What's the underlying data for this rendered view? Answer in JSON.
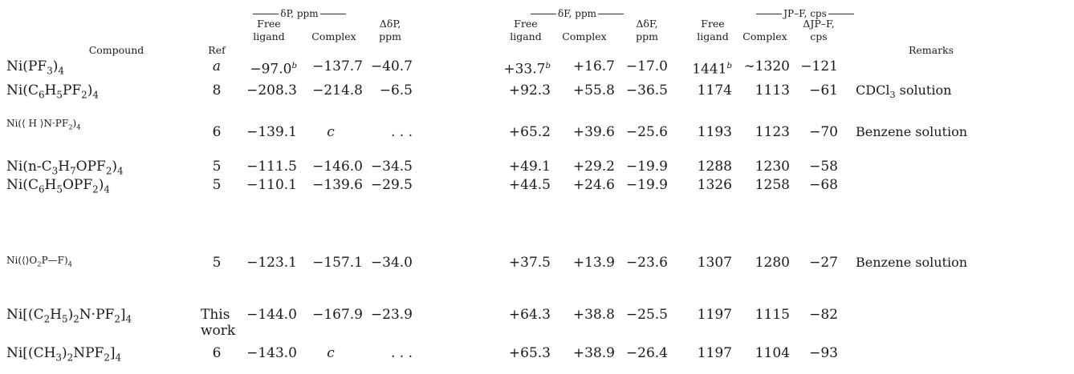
{
  "groups": {
    "dp": "δP, ppm",
    "df": "δF, ppm",
    "jpf": "JP–F, cps"
  },
  "headers": {
    "compound": "Compound",
    "ref": "Ref",
    "free1": "Free",
    "ligand1": "ligand",
    "complex1": "Complex",
    "ddp1": "ΔδP,",
    "ddp2": "ppm",
    "free2": "Free",
    "ligand2": "ligand",
    "complex2": "Complex",
    "ddf1": "ΔδF,",
    "ddf2": "ppm",
    "free3": "Free",
    "ligand3": "ligand",
    "complex3": "Complex",
    "dj1": "ΔJP–F,",
    "dj2": "cps",
    "remarks": "Remarks"
  },
  "compounds": {
    "r1": "Ni(PF3)4",
    "r2": "Ni(C6H5PF2)4",
    "r3": "Ni(⟨ H ⟩N·PF2)4",
    "r4": "Ni(n-C3H7OPF2)4",
    "r5": "Ni(C6H5OPF2)4",
    "r6": "Ni(⟨⟩O2P—F)4",
    "r7": "Ni[(C2H5)2N·PF2]4",
    "r8": "Ni[(CH3)2NPF2]4"
  },
  "rows": [
    {
      "ref": "a",
      "dp_free": "−97.0b",
      "dp_complex": "−137.7",
      "ddp": "−40.7",
      "df_free": "+33.7b",
      "df_complex": "+16.7",
      "ddf": "−17.0",
      "j_free": "1441b",
      "j_complex": "∼1320",
      "dj": "−121",
      "remarks": ""
    },
    {
      "ref": "8",
      "dp_free": "−208.3",
      "dp_complex": "−214.8",
      "ddp": "−6.5",
      "df_free": "+92.3",
      "df_complex": "+55.8",
      "ddf": "−36.5",
      "j_free": "1174",
      "j_complex": "1113",
      "dj": "−61",
      "remarks": "CDCl3 solution"
    },
    {
      "ref": "6",
      "dp_free": "−139.1",
      "dp_complex": "c",
      "ddp": ". . .",
      "df_free": "+65.2",
      "df_complex": "+39.6",
      "ddf": "−25.6",
      "j_free": "1193",
      "j_complex": "1123",
      "dj": "−70",
      "remarks": "Benzene solution"
    },
    {
      "ref": "5",
      "dp_free": "−111.5",
      "dp_complex": "−146.0",
      "ddp": "−34.5",
      "df_free": "+49.1",
      "df_complex": "+29.2",
      "ddf": "−19.9",
      "j_free": "1288",
      "j_complex": "1230",
      "dj": "−58",
      "remarks": ""
    },
    {
      "ref": "5",
      "dp_free": "−110.1",
      "dp_complex": "−139.6",
      "ddp": "−29.5",
      "df_free": "+44.5",
      "df_complex": "+24.6",
      "ddf": "−19.9",
      "j_free": "1326",
      "j_complex": "1258",
      "dj": "−68",
      "remarks": ""
    },
    {
      "ref": "5",
      "dp_free": "−123.1",
      "dp_complex": "−157.1",
      "ddp": "−34.0",
      "df_free": "+37.5",
      "df_complex": "+13.9",
      "ddf": "−23.6",
      "j_free": "1307",
      "j_complex": "1280",
      "dj": "−27",
      "remarks": "Benzene solution"
    },
    {
      "ref": "This work",
      "dp_free": "−144.0",
      "dp_complex": "−167.9",
      "ddp": "−23.9",
      "df_free": "+64.3",
      "df_complex": "+38.8",
      "ddf": "−25.5",
      "j_free": "1197",
      "j_complex": "1115",
      "dj": "−82",
      "remarks": ""
    },
    {
      "ref": "6",
      "dp_free": "−143.0",
      "dp_complex": "c",
      "ddp": ". . .",
      "df_free": "+65.3",
      "df_complex": "+38.9",
      "ddf": "−26.4",
      "j_free": "1197",
      "j_complex": "1104",
      "dj": "−93",
      "remarks": ""
    }
  ]
}
